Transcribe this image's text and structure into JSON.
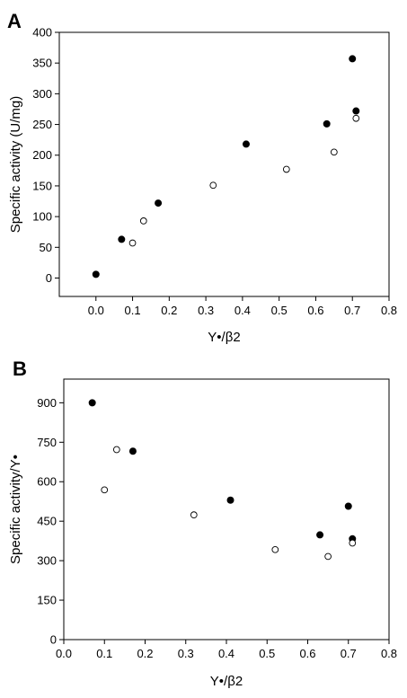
{
  "chart_data": [
    {
      "panel": "A",
      "type": "scatter",
      "xlabel": "Y•/β2",
      "ylabel": "Specific activity (U/mg)",
      "xlim": [
        -0.1,
        0.8
      ],
      "ylim": [
        -30,
        400
      ],
      "x_ticks": [
        0.0,
        0.1,
        0.2,
        0.3,
        0.4,
        0.5,
        0.6,
        0.7,
        0.8
      ],
      "y_ticks": [
        0,
        50,
        100,
        150,
        200,
        250,
        300,
        350,
        400
      ],
      "x_tick_labels": [
        "0.0",
        "0.1",
        "0.2",
        "0.3",
        "0.4",
        "0.5",
        "0.6",
        "0.7",
        "0.8"
      ],
      "y_tick_labels": [
        "0",
        "50",
        "100",
        "150",
        "200",
        "250",
        "300",
        "350",
        "400"
      ],
      "grid": false,
      "series": [
        {
          "marker": "filled-circle",
          "color": "#000000",
          "points": [
            [
              0.0,
              6
            ],
            [
              0.07,
              63
            ],
            [
              0.17,
              122
            ],
            [
              0.41,
              218
            ],
            [
              0.63,
              251
            ],
            [
              0.7,
              357
            ],
            [
              0.71,
              272
            ]
          ]
        },
        {
          "marker": "open-circle",
          "color": "#000000",
          "points": [
            [
              0.1,
              57
            ],
            [
              0.13,
              93
            ],
            [
              0.32,
              151
            ],
            [
              0.52,
              177
            ],
            [
              0.65,
              205
            ],
            [
              0.71,
              260
            ]
          ]
        }
      ]
    },
    {
      "panel": "B",
      "type": "scatter",
      "xlabel": "Y•/β2",
      "ylabel": "Specific activity/Y•",
      "xlim": [
        0.0,
        0.8
      ],
      "ylim": [
        0,
        990
      ],
      "x_ticks": [
        0.0,
        0.1,
        0.2,
        0.3,
        0.4,
        0.5,
        0.6,
        0.7,
        0.8
      ],
      "y_ticks": [
        0,
        150,
        300,
        450,
        600,
        750,
        900
      ],
      "x_tick_labels": [
        "0.0",
        "0.1",
        "0.2",
        "0.3",
        "0.4",
        "0.5",
        "0.6",
        "0.7",
        "0.8"
      ],
      "y_tick_labels": [
        "0",
        "150",
        "300",
        "450",
        "600",
        "750",
        "900"
      ],
      "grid": false,
      "series": [
        {
          "marker": "filled-circle",
          "color": "#000000",
          "points": [
            [
              0.07,
              900
            ],
            [
              0.17,
              716
            ],
            [
              0.41,
              530
            ],
            [
              0.63,
              398
            ],
            [
              0.7,
              507
            ],
            [
              0.71,
              383
            ]
          ]
        },
        {
          "marker": "open-circle",
          "color": "#000000",
          "points": [
            [
              0.1,
              569
            ],
            [
              0.13,
              722
            ],
            [
              0.32,
              474
            ],
            [
              0.52,
              342
            ],
            [
              0.65,
              316
            ],
            [
              0.71,
              367
            ]
          ]
        }
      ]
    }
  ]
}
